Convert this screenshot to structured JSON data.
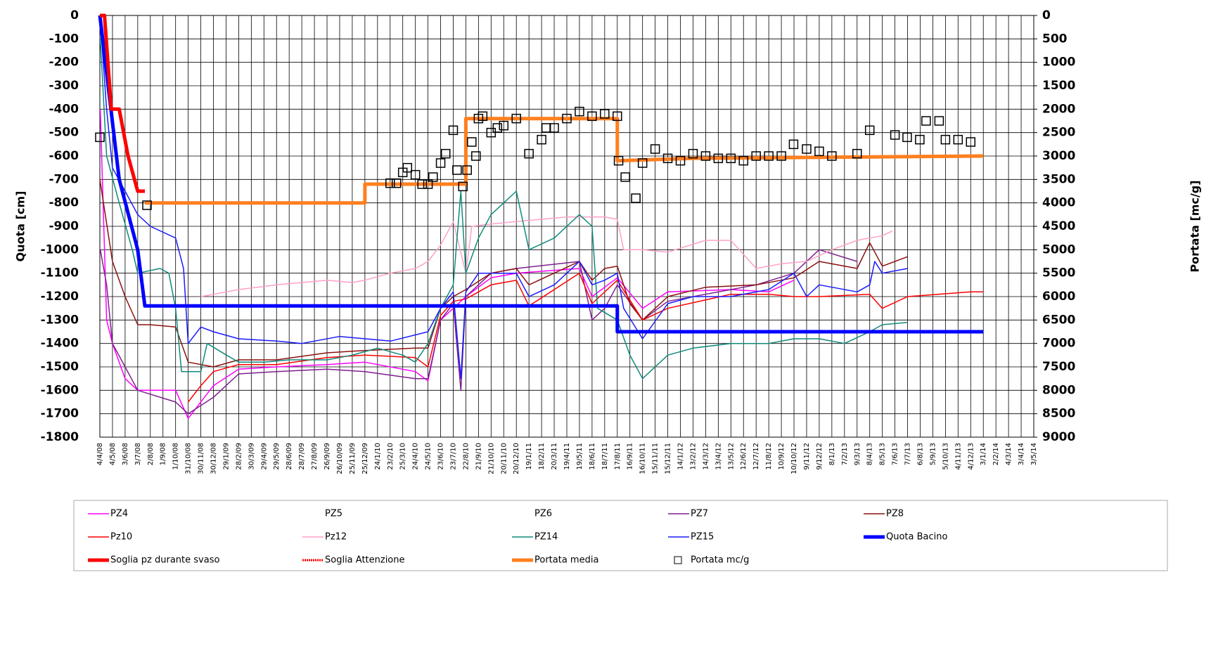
{
  "chart_data": {
    "type": "line",
    "ylabel": "Quota [cm]",
    "y2label": "Portata [mc/g]",
    "ylim": [
      -1800,
      0
    ],
    "yticks": [
      0,
      -100,
      -200,
      -300,
      -400,
      -500,
      -600,
      -700,
      -800,
      -900,
      -1000,
      -1100,
      -1200,
      -1300,
      -1400,
      -1500,
      -1600,
      -1700,
      -1800
    ],
    "y2lim": [
      9000,
      0
    ],
    "y2ticks": [
      0,
      500,
      1000,
      1500,
      2000,
      2500,
      3000,
      3500,
      4000,
      4500,
      5000,
      5500,
      6000,
      6500,
      7000,
      7500,
      8000,
      8500,
      9000
    ],
    "xlim": [
      "4/4/08",
      "3/5/14"
    ],
    "xticks": [
      "4/4/08",
      "4/5/08",
      "3/6/08",
      "3/7/08",
      "2/8/08",
      "1/9/08",
      "1/10/08",
      "31/10/08",
      "30/11/08",
      "30/12/08",
      "29/1/09",
      "28/2/09",
      "30/3/09",
      "29/4/09",
      "29/5/09",
      "28/6/09",
      "28/7/09",
      "27/8/09",
      "26/9/09",
      "26/10/09",
      "25/11/09",
      "25/12/09",
      "24/1/10",
      "23/2/10",
      "25/3/10",
      "24/4/10",
      "24/5/10",
      "23/6/10",
      "23/7/10",
      "22/8/10",
      "21/9/10",
      "21/10/10",
      "20/11/10",
      "20/12/10",
      "19/1/11",
      "18/2/11",
      "20/3/11",
      "19/4/11",
      "19/5/11",
      "18/6/11",
      "18/7/11",
      "17/8/11",
      "16/9/11",
      "16/10/11",
      "15/11/11",
      "15/12/11",
      "14/1/12",
      "13/2/12",
      "14/3/12",
      "13/4/12",
      "13/5/12",
      "12/6/12",
      "12/7/12",
      "11/8/12",
      "10/9/12",
      "10/10/12",
      "9/11/12",
      "9/12/12",
      "8/1/13",
      "7/2/13",
      "9/3/13",
      "8/4/13",
      "8/5/13",
      "7/6/13",
      "7/7/13",
      "6/8/13",
      "5/9/13",
      "5/10/13",
      "4/11/13",
      "4/12/13",
      "3/1/14",
      "2/2/14",
      "4/3/14",
      "3/4/14",
      "3/5/14"
    ],
    "grid": true,
    "series": [
      {
        "name": "PZ4",
        "color": "#ff00ff",
        "width": 1.5,
        "x": [
          "5/4/08",
          "20/4/08",
          "4/5/08",
          "3/6/08",
          "3/7/08",
          "1/10/08",
          "31/10/08",
          "30/12/08",
          "28/2/09",
          "29/5/09",
          "26/9/09",
          "25/12/09",
          "24/4/10",
          "24/5/10",
          "23/6/10",
          "23/7/10",
          "22/8/10",
          "21/10/10",
          "20/12/10",
          "19/5/11",
          "18/6/11",
          "17/8/11",
          "16/10/11",
          "15/12/11",
          "13/5/12",
          "11/8/12",
          "10/10/12"
        ],
        "values": [
          -400,
          -1300,
          -1400,
          -1550,
          -1600,
          -1600,
          -1720,
          -1580,
          -1510,
          -1500,
          -1490,
          -1480,
          -1520,
          -1560,
          -1300,
          -1250,
          -1200,
          -1120,
          -1100,
          -1080,
          -1200,
          -1120,
          -1250,
          -1180,
          -1170,
          -1180,
          -1130
        ]
      },
      {
        "name": "PZ5",
        "x": [],
        "values": []
      },
      {
        "name": "PZ6",
        "x": [],
        "values": []
      },
      {
        "name": "PZ7",
        "color": "#7f1f8f",
        "width": 1.5,
        "x": [
          "5/4/08",
          "20/4/08",
          "4/5/08",
          "3/6/08",
          "3/7/08",
          "1/10/08",
          "31/10/08",
          "30/12/08",
          "28/2/09",
          "29/5/09",
          "26/9/09",
          "25/12/09",
          "24/4/10",
          "24/5/10",
          "23/6/10",
          "23/7/10",
          "10/8/10",
          "22/8/10",
          "21/10/10",
          "20/12/10",
          "19/5/11",
          "18/6/11",
          "18/7/11",
          "17/8/11",
          "16/10/11",
          "15/12/11",
          "12/7/12",
          "10/10/12",
          "9/12/12",
          "9/3/13"
        ],
        "values": [
          -1000,
          -1150,
          -1400,
          -1500,
          -1600,
          -1650,
          -1700,
          -1630,
          -1530,
          -1520,
          -1510,
          -1520,
          -1550,
          -1550,
          -1300,
          -1230,
          -1600,
          -1200,
          -1100,
          -1080,
          -1050,
          -1300,
          -1250,
          -1150,
          -1300,
          -1220,
          -1150,
          -1100,
          -1000,
          -1050
        ]
      },
      {
        "name": "PZ8",
        "color": "#8b1010",
        "width": 1.5,
        "x": [
          "4/4/08",
          "4/5/08",
          "3/6/08",
          "3/7/08",
          "2/8/08",
          "1/10/08",
          "31/10/08",
          "30/12/08",
          "28/2/09",
          "29/5/09",
          "26/9/09",
          "25/12/09",
          "24/4/10",
          "24/5/10",
          "23/6/10",
          "23/7/10",
          "22/8/10",
          "21/10/10",
          "20/12/10",
          "19/1/11",
          "19/5/11",
          "18/6/11",
          "18/7/11",
          "17/8/11",
          "16/9/11",
          "16/10/11",
          "15/12/11",
          "14/3/12",
          "12/7/12",
          "10/10/12",
          "9/12/12",
          "9/3/13",
          "8/4/13",
          "8/5/13",
          "7/7/13"
        ],
        "values": [
          -700,
          -1050,
          -1200,
          -1320,
          -1320,
          -1330,
          -1480,
          -1500,
          -1470,
          -1470,
          -1440,
          -1430,
          -1420,
          -1420,
          -1250,
          -1200,
          -1170,
          -1100,
          -1080,
          -1150,
          -1050,
          -1130,
          -1080,
          -1070,
          -1230,
          -1300,
          -1200,
          -1160,
          -1150,
          -1120,
          -1050,
          -1080,
          -970,
          -1070,
          -1030
        ]
      },
      {
        "name": "Pz10",
        "color": "#ff0000",
        "width": 1.5,
        "x": [
          "31/10/08",
          "30/11/08",
          "30/12/08",
          "28/2/09",
          "29/5/09",
          "26/9/09",
          "25/12/09",
          "24/4/10",
          "24/5/10",
          "23/6/10",
          "23/7/10",
          "22/8/10",
          "21/10/10",
          "20/12/10",
          "19/1/11",
          "19/5/11",
          "18/6/11",
          "17/8/11",
          "16/10/11",
          "15/12/11",
          "13/5/12",
          "11/8/12",
          "10/10/12",
          "9/12/12",
          "8/4/13",
          "8/5/13",
          "7/7/13",
          "4/12/13",
          "3/1/14"
        ],
        "values": [
          -1650,
          -1580,
          -1520,
          -1490,
          -1490,
          -1460,
          -1450,
          -1460,
          -1500,
          -1280,
          -1220,
          -1210,
          -1150,
          -1130,
          -1240,
          -1100,
          -1230,
          -1130,
          -1300,
          -1250,
          -1190,
          -1190,
          -1200,
          -1200,
          -1190,
          -1250,
          -1200,
          -1180,
          -1180
        ]
      },
      {
        "name": "Pz12",
        "color": "#ffa0c8",
        "width": 1.5,
        "x": [
          "30/11/08",
          "30/12/08",
          "28/2/09",
          "29/5/09",
          "26/9/09",
          "25/11/09",
          "25/12/09",
          "23/2/10",
          "24/4/10",
          "24/5/10",
          "23/6/10",
          "23/7/10",
          "22/8/10",
          "5/9/10",
          "21/10/10",
          "20/12/10",
          "19/4/11",
          "18/7/11",
          "17/8/11",
          "1/9/11",
          "16/10/11",
          "15/12/11",
          "14/3/12",
          "13/5/12",
          "12/7/12",
          "10/9/12",
          "9/11/12",
          "8/1/13",
          "9/3/13",
          "8/5/13",
          "1/6/13"
        ],
        "values": [
          -1200,
          -1190,
          -1170,
          -1150,
          -1130,
          -1140,
          -1130,
          -1100,
          -1080,
          -1050,
          -980,
          -880,
          -1100,
          -900,
          -890,
          -880,
          -860,
          -860,
          -870,
          -1000,
          -1000,
          -1010,
          -960,
          -960,
          -1080,
          -1060,
          -1050,
          -1000,
          -960,
          -940,
          -920
        ]
      },
      {
        "name": "PZ14",
        "color": "#0f8a7a",
        "width": 1.5,
        "x": [
          "5/4/08",
          "20/4/08",
          "20/5/08",
          "20/6/08",
          "3/7/08",
          "25/8/08",
          "15/9/08",
          "1/10/08",
          "15/10/08",
          "30/11/08",
          "15/12/08",
          "30/1/09",
          "28/2/09",
          "30/4/09",
          "28/6/09",
          "26/9/09",
          "25/11/09",
          "24/1/10",
          "25/3/10",
          "24/4/10",
          "24/5/10",
          "23/6/10",
          "23/7/10",
          "10/8/10",
          "22/8/10",
          "21/9/10",
          "21/10/10",
          "20/11/10",
          "20/12/10",
          "19/1/11",
          "20/3/11",
          "19/4/11",
          "19/5/11",
          "18/6/11",
          "1/7/11",
          "17/8/11",
          "16/9/11",
          "16/10/11",
          "15/12/11",
          "13/2/12",
          "13/5/12",
          "11/8/12",
          "10/10/12",
          "9/12/12",
          "7/2/13",
          "8/4/13",
          "8/5/13",
          "7/7/13"
        ],
        "values": [
          -100,
          -600,
          -800,
          -1000,
          -1100,
          -1080,
          -1100,
          -1250,
          -1520,
          -1520,
          -1400,
          -1450,
          -1480,
          -1480,
          -1470,
          -1470,
          -1450,
          -1420,
          -1450,
          -1480,
          -1400,
          -1250,
          -1150,
          -750,
          -1100,
          -950,
          -850,
          -800,
          -750,
          -1000,
          -950,
          -900,
          -850,
          -900,
          -1250,
          -1300,
          -1450,
          -1550,
          -1450,
          -1420,
          -1400,
          -1400,
          -1380,
          -1380,
          -1400,
          -1350,
          -1320,
          -1310
        ]
      },
      {
        "name": "PZ15",
        "color": "#1a1aff",
        "width": 1.5,
        "x": [
          "4/4/08",
          "20/4/08",
          "4/5/08",
          "3/6/08",
          "3/7/08",
          "2/8/08",
          "1/10/08",
          "20/10/08",
          "31/10/08",
          "30/11/08",
          "30/12/08",
          "28/2/09",
          "29/5/09",
          "28/7/09",
          "26/10/09",
          "25/12/09",
          "24/2/10",
          "24/5/10",
          "23/6/10",
          "23/7/10",
          "10/8/10",
          "22/8/10",
          "21/9/10",
          "20/12/10",
          "19/1/11",
          "20/3/11",
          "19/5/11",
          "18/6/11",
          "18/7/11",
          "17/8/11",
          "1/9/11",
          "16/10/11",
          "15/12/11",
          "13/2/12",
          "13/5/12",
          "11/8/12",
          "10/10/12",
          "9/11/12",
          "9/12/12",
          "9/3/13",
          "8/4/13",
          "20/4/13",
          "8/5/13",
          "7/7/13"
        ],
        "values": [
          0,
          -400,
          -650,
          -750,
          -850,
          -900,
          -950,
          -1080,
          -1400,
          -1330,
          -1350,
          -1380,
          -1390,
          -1400,
          -1370,
          -1380,
          -1390,
          -1350,
          -1250,
          -1180,
          -1550,
          -1180,
          -1100,
          -1100,
          -1200,
          -1150,
          -1050,
          -1150,
          -1130,
          -1100,
          -1250,
          -1380,
          -1230,
          -1200,
          -1200,
          -1170,
          -1100,
          -1200,
          -1150,
          -1180,
          -1150,
          -1050,
          -1100,
          -1080
        ]
      },
      {
        "name": "Quota Bacino",
        "color": "#0000ff",
        "width": 5,
        "x": [
          "4/4/08",
          "20/5/08",
          "3/7/08",
          "20/7/08",
          "17/8/11",
          "17/8/11",
          "3/1/14"
        ],
        "values": [
          0,
          -700,
          -1000,
          -1240,
          -1240,
          -1350,
          -1350
        ]
      },
      {
        "name": "Soglia pz durante svaso",
        "color": "#ff0000",
        "width": 5,
        "x": [
          "4/4/08",
          "15/4/08",
          "1/5/08",
          "20/5/08",
          "10/6/08",
          "3/7/08",
          "20/7/08"
        ],
        "values": [
          0,
          0,
          -400,
          -400,
          -600,
          -750,
          -750
        ]
      },
      {
        "name": "Soglia Attenzione",
        "color": "#ff0000",
        "dash": true,
        "x": [],
        "values": []
      },
      {
        "name": "Portata media",
        "color": "#ff7f1f",
        "width": 5,
        "axis": "y2",
        "x": [
          "20/7/08",
          "25/12/09",
          "25/12/09",
          "22/8/10",
          "22/8/10",
          "17/8/11",
          "17/8/11",
          "15/2/12",
          "3/1/14"
        ],
        "values": [
          4000,
          4000,
          3600,
          3600,
          2200,
          2200,
          3100,
          3050,
          3000
        ]
      },
      {
        "name": "Portata mc/g",
        "color": "#000000",
        "marker": "square",
        "axis": "y2",
        "x": [
          "4/4/08",
          "25/7/08",
          "23/2/10",
          "10/3/10",
          "25/3/10",
          "5/4/10",
          "24/4/10",
          "10/5/10",
          "24/5/10",
          "5/6/10",
          "23/6/10",
          "5/7/10",
          "23/7/10",
          "1/8/10",
          "15/8/10",
          "25/8/10",
          "5/9/10",
          "15/9/10",
          "21/9/10",
          "1/10/10",
          "21/10/10",
          "5/11/10",
          "20/11/10",
          "20/12/10",
          "19/1/11",
          "18/2/11",
          "1/3/11",
          "20/3/11",
          "19/4/11",
          "19/5/11",
          "18/6/11",
          "18/7/11",
          "17/8/11",
          "20/8/11",
          "5/9/11",
          "30/9/11",
          "16/10/11",
          "15/11/11",
          "15/12/11",
          "14/1/12",
          "13/2/12",
          "14/3/12",
          "13/4/12",
          "13/5/12",
          "12/6/12",
          "12/7/12",
          "11/8/12",
          "10/9/12",
          "9/10/12",
          "9/11/12",
          "9/12/12",
          "8/1/13",
          "9/3/13",
          "8/4/13",
          "7/6/13",
          "6/7/13",
          "5/8/13",
          "20/8/13",
          "20/9/13",
          "5/10/13",
          "4/11/13",
          "4/12/13"
        ],
        "values": [
          2600,
          4050,
          3580,
          3580,
          3350,
          3250,
          3400,
          3600,
          3600,
          3450,
          3150,
          2950,
          2450,
          3300,
          3650,
          3300,
          2700,
          3000,
          2200,
          2150,
          2500,
          2400,
          2350,
          2200,
          2950,
          2650,
          2400,
          2400,
          2200,
          2050,
          2150,
          2100,
          2150,
          3100,
          3450,
          3900,
          3150,
          2850,
          3050,
          3100,
          2950,
          3000,
          3050,
          3050,
          3100,
          3000,
          3000,
          3000,
          2750,
          2850,
          2900,
          3000,
          2950,
          2450,
          2550,
          2600,
          2650,
          2250,
          2250,
          2650,
          2650,
          2700
        ]
      }
    ]
  }
}
